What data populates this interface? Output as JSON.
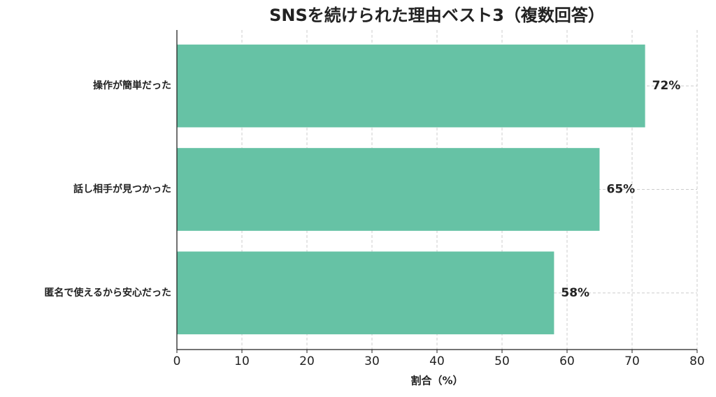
{
  "chart_data": {
    "type": "barh",
    "title": "SNSを続けられた理由ベスト3（複数回答）",
    "categories": [
      "操作が簡単だった",
      "話し相手が見つかった",
      "匿名で使えるから安心だった"
    ],
    "values": [
      72,
      65,
      58
    ],
    "value_labels": [
      "72%",
      "65%",
      "58%"
    ],
    "color": "#66c2a5",
    "xlabel": "割合（%）",
    "xlim": [
      0,
      80
    ],
    "xticks": [
      0,
      10,
      20,
      30,
      40,
      50,
      60,
      70,
      80
    ],
    "grid": true
  }
}
